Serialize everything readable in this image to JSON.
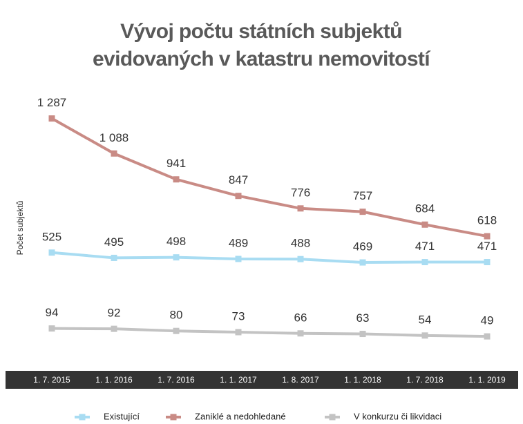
{
  "chart_data": {
    "type": "line",
    "title": "Vývoj počtu státních subjektů evidovaných v katastru nemovitostí",
    "y_label": "Počet subjektů",
    "categories": [
      "1. 7. 2015",
      "1. 1. 2016",
      "1. 7. 2016",
      "1. 1. 2017",
      "1. 8. 2017",
      "1. 1. 2018",
      "1. 7. 2018",
      "1. 1. 2019"
    ],
    "ylim": [
      -80,
      1450
    ],
    "legend": "bottom",
    "series": [
      {
        "name": "Existující",
        "color": "#a8dcf2",
        "values": [
          525,
          495,
          498,
          489,
          488,
          469,
          471,
          471
        ]
      },
      {
        "name": "Zaniklé a nedohledané",
        "color": "#c98b85",
        "values": [
          1287,
          1088,
          941,
          847,
          776,
          757,
          684,
          618
        ],
        "value_labels": [
          "1 287",
          "1 088",
          "941",
          "847",
          "776",
          "757",
          "684",
          "618"
        ]
      },
      {
        "name": "V konkurzu či likvidaci",
        "color": "#c3c3c3",
        "values": [
          94,
          92,
          80,
          73,
          66,
          63,
          54,
          49
        ]
      }
    ]
  }
}
